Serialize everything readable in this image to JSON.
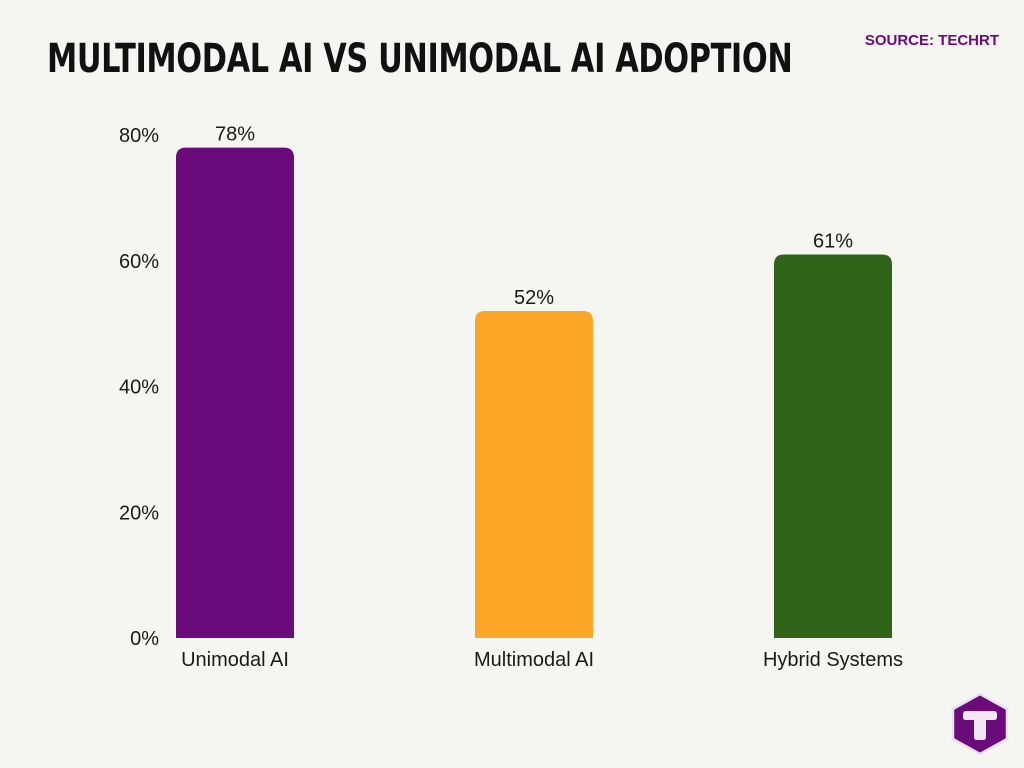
{
  "header": {
    "title": "MULTIMODAL AI VS UNIMODAL AI ADOPTION",
    "source": "SOURCE: TECHRT"
  },
  "logo": {
    "icon": "techrt-logo-icon",
    "letter": "T",
    "color": "#6b0a7a"
  },
  "chart_data": {
    "type": "bar",
    "title": "MULTIMODAL AI VS UNIMODAL AI ADOPTION",
    "xlabel": "",
    "ylabel": "",
    "categories": [
      "Unimodal AI",
      "Multimodal AI",
      "Hybrid Systems"
    ],
    "values": [
      78,
      52,
      61
    ],
    "value_labels": [
      "78%",
      "52%",
      "61%"
    ],
    "colors": [
      "#6b0a7a",
      "#fca628",
      "#2f6418"
    ],
    "ylim": [
      0,
      80
    ],
    "y_ticks": [
      0,
      20,
      40,
      60,
      80
    ],
    "y_tick_labels": [
      "0%",
      "20%",
      "40%",
      "60%",
      "80%"
    ],
    "grid": false,
    "legend": "none"
  }
}
